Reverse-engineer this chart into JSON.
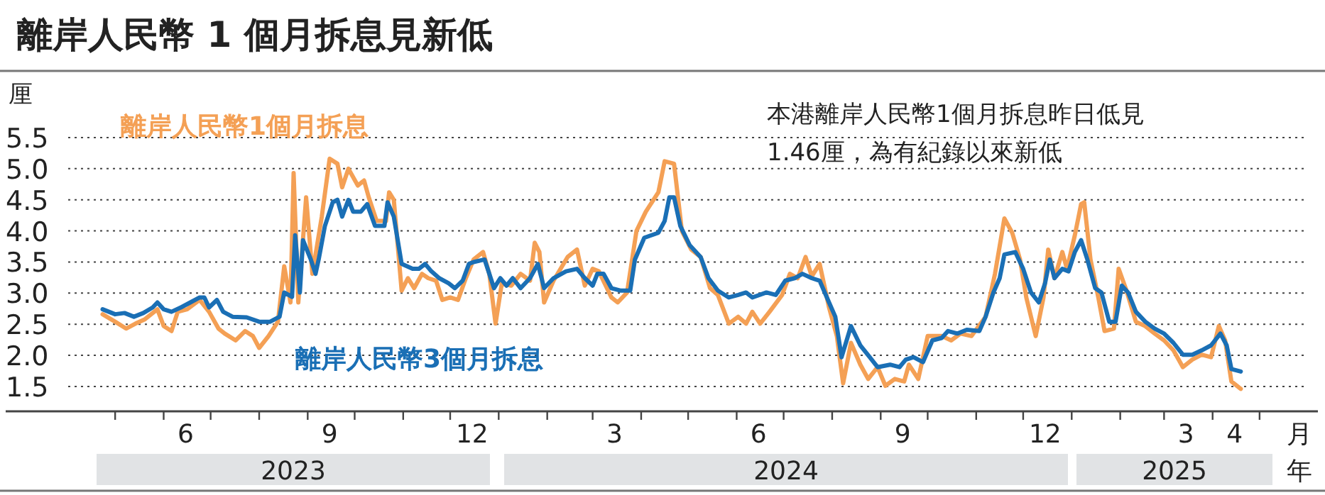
{
  "chart_data": {
    "type": "line",
    "title": "離岸人民幣 1 個月拆息見新低",
    "ylabel": "厘",
    "xlabel": "月",
    "xlim": [
      "2023-04-01",
      "2025-05-31"
    ],
    "ylim": [
      1.1,
      5.5
    ],
    "yticks": [
      1.5,
      {
        "value": 2,
        "label": "2.0"
      },
      2.5,
      {
        "value": 3,
        "label": "3.0"
      },
      3.5,
      {
        "value": 4,
        "label": "4.0"
      },
      4.5,
      {
        "value": 5,
        "label": "5.0"
      },
      5.5
    ],
    "xticks": [
      {
        "value": "2023-05-01",
        "label": null
      },
      {
        "value": "2023-06-01",
        "label": null
      },
      {
        "value": "2023-07-01",
        "label": null
      },
      {
        "value": "2023-08-01",
        "label": null
      },
      {
        "value": "2023-09-01",
        "label": null
      },
      {
        "value": "2023-10-01",
        "label": null
      },
      {
        "value": "2023-11-01",
        "label": null
      },
      {
        "value": "2023-12-01",
        "label": null
      },
      {
        "value": "2024-01-01",
        "label": null
      },
      {
        "value": "2024-02-01",
        "label": null
      },
      {
        "value": "2024-03-01",
        "label": null
      },
      {
        "value": "2024-04-01",
        "label": null
      },
      {
        "value": "2024-05-01",
        "label": null
      },
      {
        "value": "2024-06-01",
        "label": null
      },
      {
        "value": "2024-07-01",
        "label": null
      },
      {
        "value": "2024-08-01",
        "label": null
      },
      {
        "value": "2024-09-01",
        "label": null
      },
      {
        "value": "2024-10-01",
        "label": null
      },
      {
        "value": "2024-11-01",
        "label": null
      },
      {
        "value": "2024-12-01",
        "label": null
      },
      {
        "value": "2025-01-01",
        "label": null
      },
      {
        "value": "2025-02-01",
        "label": null
      },
      {
        "value": "2025-03-01",
        "label": null
      },
      {
        "value": "2025-04-01",
        "label": null
      },
      {
        "value": "2025-05-01",
        "label": null
      },
      {
        "value": "2023-06-15",
        "label": "6"
      },
      {
        "value": "2023-09-15",
        "label": "9"
      },
      {
        "value": "2023-12-15",
        "label": "12"
      },
      {
        "value": "2024-03-15",
        "label": "3"
      },
      {
        "value": "2024-06-15",
        "label": "6"
      },
      {
        "value": "2024-09-15",
        "label": "9"
      },
      {
        "value": "2024-12-15",
        "label": "12"
      },
      {
        "value": "2025-03-15",
        "label": "3"
      },
      {
        "value": "2025-04-15",
        "label": "4"
      }
    ],
    "grid": "y",
    "line_style": "solid",
    "annotations": [
      "本港離岸人民幣1個月拆息昨日低見\n1.46厘，為有紀錄以來新低",
      "年",
      "2023",
      "2024",
      "2025"
    ],
    "series": [
      {
        "name": "離岸人民幣1個月拆息",
        "color": "#f4a055",
        "x": [
          "2023-04-23",
          "2023-05-01",
          "2023-05-08",
          "2023-05-14",
          "2023-05-20",
          "2023-05-28",
          "2023-06-01",
          "2023-06-06",
          "2023-06-10",
          "2023-06-16",
          "2023-06-24",
          "2023-06-30",
          "2023-07-06",
          "2023-07-10",
          "2023-07-17",
          "2023-07-23",
          "2023-07-28",
          "2023-08-01",
          "2023-08-07",
          "2023-08-13",
          "2023-08-17",
          "2023-08-21",
          "2023-08-23",
          "2023-08-26",
          "2023-08-31",
          "2023-09-04",
          "2023-09-10",
          "2023-09-15",
          "2023-09-20",
          "2023-09-23",
          "2023-09-27",
          "2023-10-03",
          "2023-10-07",
          "2023-10-10",
          "2023-10-15",
          "2023-10-21",
          "2023-10-23",
          "2023-10-26",
          "2023-10-31",
          "2023-11-04",
          "2023-11-08",
          "2023-11-13",
          "2023-11-17",
          "2023-11-22",
          "2023-11-26",
          "2023-12-01",
          "2023-12-06",
          "2023-12-11",
          "2023-12-16",
          "2023-12-22",
          "2023-12-26",
          "2023-12-30",
          "2024-01-03",
          "2024-01-09",
          "2024-01-15",
          "2024-01-21",
          "2024-01-24",
          "2024-01-27",
          "2024-01-30",
          "2024-02-05",
          "2024-02-14",
          "2024-02-20",
          "2024-02-25",
          "2024-03-01",
          "2024-03-05",
          "2024-03-13",
          "2024-03-17",
          "2024-03-23",
          "2024-03-29",
          "2024-04-04",
          "2024-04-12",
          "2024-04-16",
          "2024-04-22",
          "2024-04-27",
          "2024-05-03",
          "2024-05-09",
          "2024-05-15",
          "2024-05-20",
          "2024-05-27",
          "2024-06-02",
          "2024-06-07",
          "2024-06-11",
          "2024-06-16",
          "2024-06-22",
          "2024-06-30",
          "2024-07-05",
          "2024-07-10",
          "2024-07-15",
          "2024-07-19",
          "2024-07-24",
          "2024-07-30",
          "2024-08-04",
          "2024-08-08",
          "2024-08-13",
          "2024-08-19",
          "2024-08-24",
          "2024-08-30",
          "2024-09-04",
          "2024-09-10",
          "2024-09-16",
          "2024-09-19",
          "2024-09-25",
          "2024-10-01",
          "2024-10-10",
          "2024-10-16",
          "2024-10-22",
          "2024-10-29",
          "2024-11-07",
          "2024-11-13",
          "2024-11-19",
          "2024-11-24",
          "2024-11-29",
          "2024-12-03",
          "2024-12-09",
          "2024-12-14",
          "2024-12-17",
          "2024-12-21",
          "2024-12-26",
          "2024-12-29",
          "2025-01-03",
          "2025-01-07",
          "2025-01-09",
          "2025-01-13",
          "2025-01-18",
          "2025-01-22",
          "2025-01-28",
          "2025-01-31",
          "2025-02-05",
          "2025-02-11",
          "2025-02-17",
          "2025-02-23",
          "2025-03-01",
          "2025-03-07",
          "2025-03-13",
          "2025-03-19",
          "2025-03-25",
          "2025-03-31",
          "2025-04-05",
          "2025-04-09",
          "2025-04-13",
          "2025-04-19"
        ],
        "values": [
          2.66,
          2.54,
          2.43,
          2.51,
          2.58,
          2.74,
          2.47,
          2.39,
          2.7,
          2.74,
          2.89,
          2.7,
          2.43,
          2.35,
          2.24,
          2.39,
          2.31,
          2.12,
          2.31,
          2.54,
          3.43,
          2.85,
          4.93,
          2.85,
          4.54,
          3.31,
          4.23,
          5.16,
          5.08,
          4.7,
          5.0,
          4.73,
          4.81,
          4.54,
          4.16,
          4.16,
          4.62,
          4.5,
          3.04,
          3.24,
          3.08,
          3.31,
          3.24,
          3.2,
          2.89,
          2.93,
          2.89,
          3.24,
          3.54,
          3.66,
          3.31,
          2.51,
          3.16,
          3.12,
          3.31,
          3.2,
          3.81,
          3.66,
          2.85,
          3.2,
          3.58,
          3.7,
          3.12,
          3.39,
          3.35,
          2.93,
          2.85,
          3.01,
          4.0,
          4.31,
          4.62,
          5.12,
          5.08,
          4.0,
          3.7,
          3.58,
          3.08,
          2.97,
          2.51,
          2.62,
          2.51,
          2.7,
          2.51,
          2.7,
          2.97,
          3.31,
          3.24,
          3.58,
          3.27,
          3.47,
          2.77,
          2.31,
          1.55,
          2.2,
          1.85,
          1.62,
          1.81,
          1.51,
          1.62,
          1.58,
          1.85,
          1.62,
          2.31,
          2.31,
          2.24,
          2.35,
          2.31,
          2.62,
          3.31,
          4.2,
          3.97,
          3.54,
          2.93,
          2.31,
          2.93,
          3.7,
          3.24,
          3.66,
          3.39,
          3.93,
          4.43,
          4.46,
          3.54,
          2.93,
          2.39,
          2.43,
          3.39,
          3.04,
          2.54,
          2.47,
          2.35,
          2.24,
          2.08,
          1.81,
          1.93,
          2.01,
          1.97,
          2.47,
          2.24,
          1.58,
          1.46
        ]
      },
      {
        "name": "離岸人民幣3個月拆息",
        "color": "#1a6fb5",
        "x": [
          "2023-04-23",
          "2023-05-01",
          "2023-05-07",
          "2023-05-13",
          "2023-05-19",
          "2023-05-25",
          "2023-05-28",
          "2023-06-01",
          "2023-06-06",
          "2023-06-12",
          "2023-06-18",
          "2023-06-24",
          "2023-06-27",
          "2023-06-30",
          "2023-07-05",
          "2023-07-09",
          "2023-07-15",
          "2023-07-24",
          "2023-08-01",
          "2023-08-08",
          "2023-08-14",
          "2023-08-17",
          "2023-08-22",
          "2023-08-24",
          "2023-08-27",
          "2023-08-29",
          "2023-09-03",
          "2023-09-06",
          "2023-09-08",
          "2023-09-12",
          "2023-09-17",
          "2023-09-20",
          "2023-09-23",
          "2023-09-27",
          "2023-09-30",
          "2023-10-05",
          "2023-10-09",
          "2023-10-14",
          "2023-10-20",
          "2023-10-22",
          "2023-10-26",
          "2023-10-31",
          "2023-11-07",
          "2023-11-11",
          "2023-11-15",
          "2023-11-19",
          "2023-11-24",
          "2023-11-30",
          "2023-12-04",
          "2023-12-09",
          "2023-12-13",
          "2023-12-16",
          "2023-12-23",
          "2023-12-29",
          "2024-01-02",
          "2024-01-06",
          "2024-01-10",
          "2024-01-15",
          "2024-01-21",
          "2024-01-26",
          "2024-01-30",
          "2024-02-05",
          "2024-02-13",
          "2024-02-20",
          "2024-02-25",
          "2024-03-01",
          "2024-03-04",
          "2024-03-08",
          "2024-03-13",
          "2024-03-19",
          "2024-03-25",
          "2024-03-28",
          "2024-04-03",
          "2024-04-12",
          "2024-04-16",
          "2024-04-19",
          "2024-04-22",
          "2024-04-26",
          "2024-05-02",
          "2024-05-09",
          "2024-05-14",
          "2024-05-20",
          "2024-05-27",
          "2024-06-02",
          "2024-06-07",
          "2024-06-11",
          "2024-06-20",
          "2024-06-26",
          "2024-07-02",
          "2024-07-08",
          "2024-07-13",
          "2024-07-19",
          "2024-07-24",
          "2024-07-30",
          "2024-08-03",
          "2024-08-07",
          "2024-08-13",
          "2024-08-19",
          "2024-08-25",
          "2024-08-30",
          "2024-09-07",
          "2024-09-13",
          "2024-09-17",
          "2024-09-22",
          "2024-09-28",
          "2024-10-04",
          "2024-10-10",
          "2024-10-14",
          "2024-10-20",
          "2024-10-26",
          "2024-11-03",
          "2024-11-07",
          "2024-11-12",
          "2024-11-16",
          "2024-11-19",
          "2024-11-26",
          "2024-12-01",
          "2024-12-06",
          "2024-12-11",
          "2024-12-15",
          "2024-12-18",
          "2024-12-21",
          "2024-12-26",
          "2024-12-30",
          "2025-01-03",
          "2025-01-07",
          "2025-01-11",
          "2025-01-16",
          "2025-01-20",
          "2025-01-25",
          "2025-01-29",
          "2025-02-02",
          "2025-02-06",
          "2025-02-11",
          "2025-02-17",
          "2025-02-23",
          "2025-03-01",
          "2025-03-07",
          "2025-03-13",
          "2025-03-19",
          "2025-03-25",
          "2025-03-31",
          "2025-04-06",
          "2025-04-10",
          "2025-04-13",
          "2025-04-19"
        ],
        "values": [
          2.74,
          2.66,
          2.68,
          2.62,
          2.68,
          2.77,
          2.85,
          2.74,
          2.7,
          2.77,
          2.85,
          2.93,
          2.93,
          2.77,
          2.89,
          2.7,
          2.62,
          2.61,
          2.54,
          2.54,
          2.62,
          3.01,
          2.94,
          3.93,
          3.01,
          3.85,
          3.54,
          3.31,
          3.54,
          4.08,
          4.46,
          4.5,
          4.23,
          4.5,
          4.31,
          4.31,
          4.43,
          4.08,
          4.08,
          4.46,
          4.23,
          3.47,
          3.39,
          3.39,
          3.47,
          3.35,
          3.24,
          3.16,
          3.08,
          3.2,
          3.47,
          3.5,
          3.54,
          3.08,
          3.24,
          3.12,
          3.24,
          3.08,
          3.24,
          3.47,
          3.08,
          3.24,
          3.35,
          3.39,
          3.24,
          3.12,
          3.31,
          3.31,
          3.08,
          3.04,
          3.04,
          3.54,
          3.89,
          3.97,
          4.16,
          4.54,
          4.54,
          4.08,
          3.77,
          3.58,
          3.24,
          3.04,
          2.93,
          2.97,
          3.01,
          2.93,
          3.01,
          2.97,
          3.2,
          3.24,
          3.31,
          3.24,
          3.2,
          2.85,
          2.62,
          1.97,
          2.47,
          2.16,
          1.97,
          1.81,
          1.85,
          1.81,
          1.93,
          1.97,
          1.89,
          2.24,
          2.28,
          2.39,
          2.35,
          2.41,
          2.39,
          2.62,
          3.01,
          3.24,
          3.62,
          3.66,
          3.39,
          3.01,
          2.85,
          3.16,
          3.54,
          3.24,
          3.39,
          3.35,
          3.66,
          3.85,
          3.54,
          3.08,
          3.01,
          2.54,
          2.54,
          3.12,
          3.01,
          2.7,
          2.54,
          2.43,
          2.35,
          2.2,
          2.01,
          2.01,
          2.08,
          2.16,
          2.35,
          2.16,
          1.78,
          1.74
        ]
      }
    ]
  }
}
